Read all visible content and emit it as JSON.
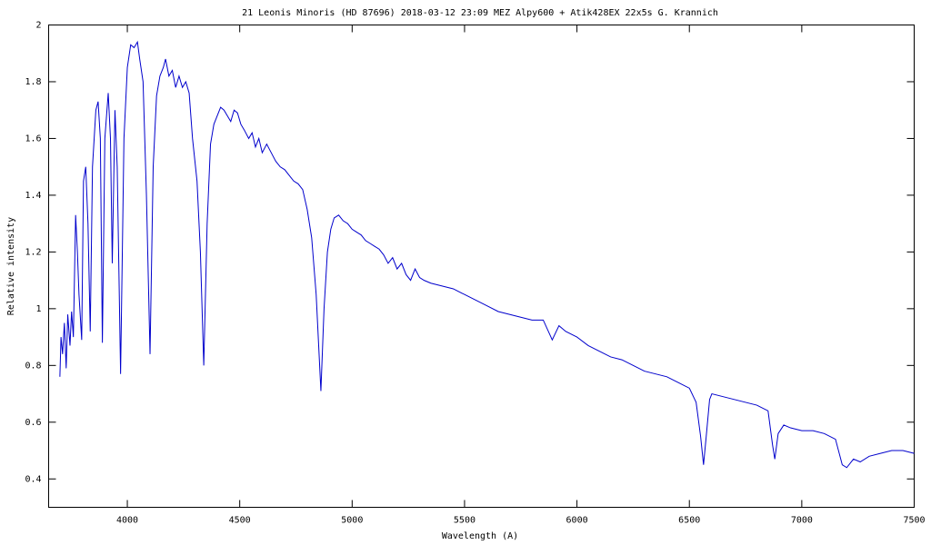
{
  "chart_data": {
    "type": "line",
    "title": "21 Leonis Minoris  (HD 87696)   2018-03-12 23:09 MEZ  Alpy600 + Atik428EX  22x5s   G. Krannich",
    "x_label": "Wavelength (A)",
    "y_label": "Relative intensity",
    "x": [
      3700,
      3705,
      3712,
      3720,
      3728,
      3735,
      3745,
      3752,
      3760,
      3770,
      3778,
      3785,
      3797,
      3805,
      3815,
      3825,
      3835,
      3845,
      3860,
      3870,
      3880,
      3889,
      3900,
      3915,
      3925,
      3933,
      3945,
      3955,
      3970,
      3985,
      4000,
      4015,
      4030,
      4045,
      4055,
      4070,
      4085,
      4101,
      4115,
      4130,
      4145,
      4160,
      4170,
      4185,
      4200,
      4215,
      4230,
      4245,
      4260,
      4275,
      4290,
      4310,
      4325,
      4340,
      4355,
      4370,
      4385,
      4400,
      4415,
      4430,
      4445,
      4460,
      4475,
      4490,
      4505,
      4520,
      4540,
      4555,
      4570,
      4585,
      4600,
      4620,
      4640,
      4660,
      4680,
      4700,
      4720,
      4740,
      4760,
      4780,
      4800,
      4820,
      4840,
      4861,
      4875,
      4890,
      4905,
      4920,
      4940,
      4960,
      4980,
      5000,
      5020,
      5040,
      5060,
      5080,
      5100,
      5120,
      5140,
      5160,
      5180,
      5200,
      5220,
      5240,
      5260,
      5280,
      5300,
      5320,
      5350,
      5400,
      5450,
      5500,
      5550,
      5600,
      5650,
      5700,
      5750,
      5800,
      5850,
      5890,
      5920,
      5950,
      6000,
      6050,
      6100,
      6150,
      6200,
      6250,
      6300,
      6350,
      6400,
      6450,
      6500,
      6530,
      6550,
      6563,
      6575,
      6590,
      6600,
      6650,
      6700,
      6750,
      6800,
      6850,
      6870,
      6880,
      6895,
      6920,
      6950,
      7000,
      7050,
      7100,
      7150,
      7180,
      7200,
      7230,
      7260,
      7300,
      7350,
      7400,
      7450,
      7500
    ],
    "series": [
      {
        "color": "#0000cc",
        "values": [
          0.76,
          0.9,
          0.84,
          0.95,
          0.79,
          0.98,
          0.87,
          0.99,
          0.9,
          1.33,
          1.2,
          1.05,
          0.89,
          1.45,
          1.5,
          1.3,
          0.92,
          1.5,
          1.7,
          1.73,
          1.6,
          0.88,
          1.6,
          1.76,
          1.6,
          1.16,
          1.7,
          1.5,
          0.77,
          1.6,
          1.85,
          1.93,
          1.92,
          1.94,
          1.88,
          1.8,
          1.4,
          0.84,
          1.5,
          1.75,
          1.82,
          1.85,
          1.88,
          1.82,
          1.84,
          1.78,
          1.82,
          1.78,
          1.8,
          1.76,
          1.6,
          1.45,
          1.2,
          0.8,
          1.3,
          1.58,
          1.65,
          1.68,
          1.71,
          1.7,
          1.68,
          1.66,
          1.7,
          1.69,
          1.65,
          1.63,
          1.6,
          1.62,
          1.57,
          1.6,
          1.55,
          1.58,
          1.55,
          1.52,
          1.5,
          1.49,
          1.47,
          1.45,
          1.44,
          1.42,
          1.35,
          1.25,
          1.05,
          0.71,
          1.0,
          1.2,
          1.28,
          1.32,
          1.33,
          1.31,
          1.3,
          1.28,
          1.27,
          1.26,
          1.24,
          1.23,
          1.22,
          1.21,
          1.19,
          1.16,
          1.18,
          1.14,
          1.16,
          1.12,
          1.1,
          1.14,
          1.11,
          1.1,
          1.09,
          1.08,
          1.07,
          1.05,
          1.03,
          1.01,
          0.99,
          0.98,
          0.97,
          0.96,
          0.96,
          0.89,
          0.94,
          0.92,
          0.9,
          0.87,
          0.85,
          0.83,
          0.82,
          0.8,
          0.78,
          0.77,
          0.76,
          0.74,
          0.72,
          0.67,
          0.55,
          0.45,
          0.55,
          0.68,
          0.7,
          0.69,
          0.68,
          0.67,
          0.66,
          0.64,
          0.52,
          0.47,
          0.56,
          0.59,
          0.58,
          0.57,
          0.57,
          0.56,
          0.54,
          0.45,
          0.44,
          0.47,
          0.46,
          0.48,
          0.49,
          0.5,
          0.5,
          0.49
        ]
      }
    ],
    "xlim": [
      3650,
      7500
    ],
    "ylim": [
      0.3,
      2
    ],
    "xticks": [
      4000,
      4500,
      5000,
      5500,
      6000,
      6500,
      7000,
      7500
    ],
    "yticks": [
      0.4,
      0.6,
      0.8,
      1,
      1.2,
      1.4,
      1.6,
      1.8,
      2
    ],
    "grid": false
  }
}
